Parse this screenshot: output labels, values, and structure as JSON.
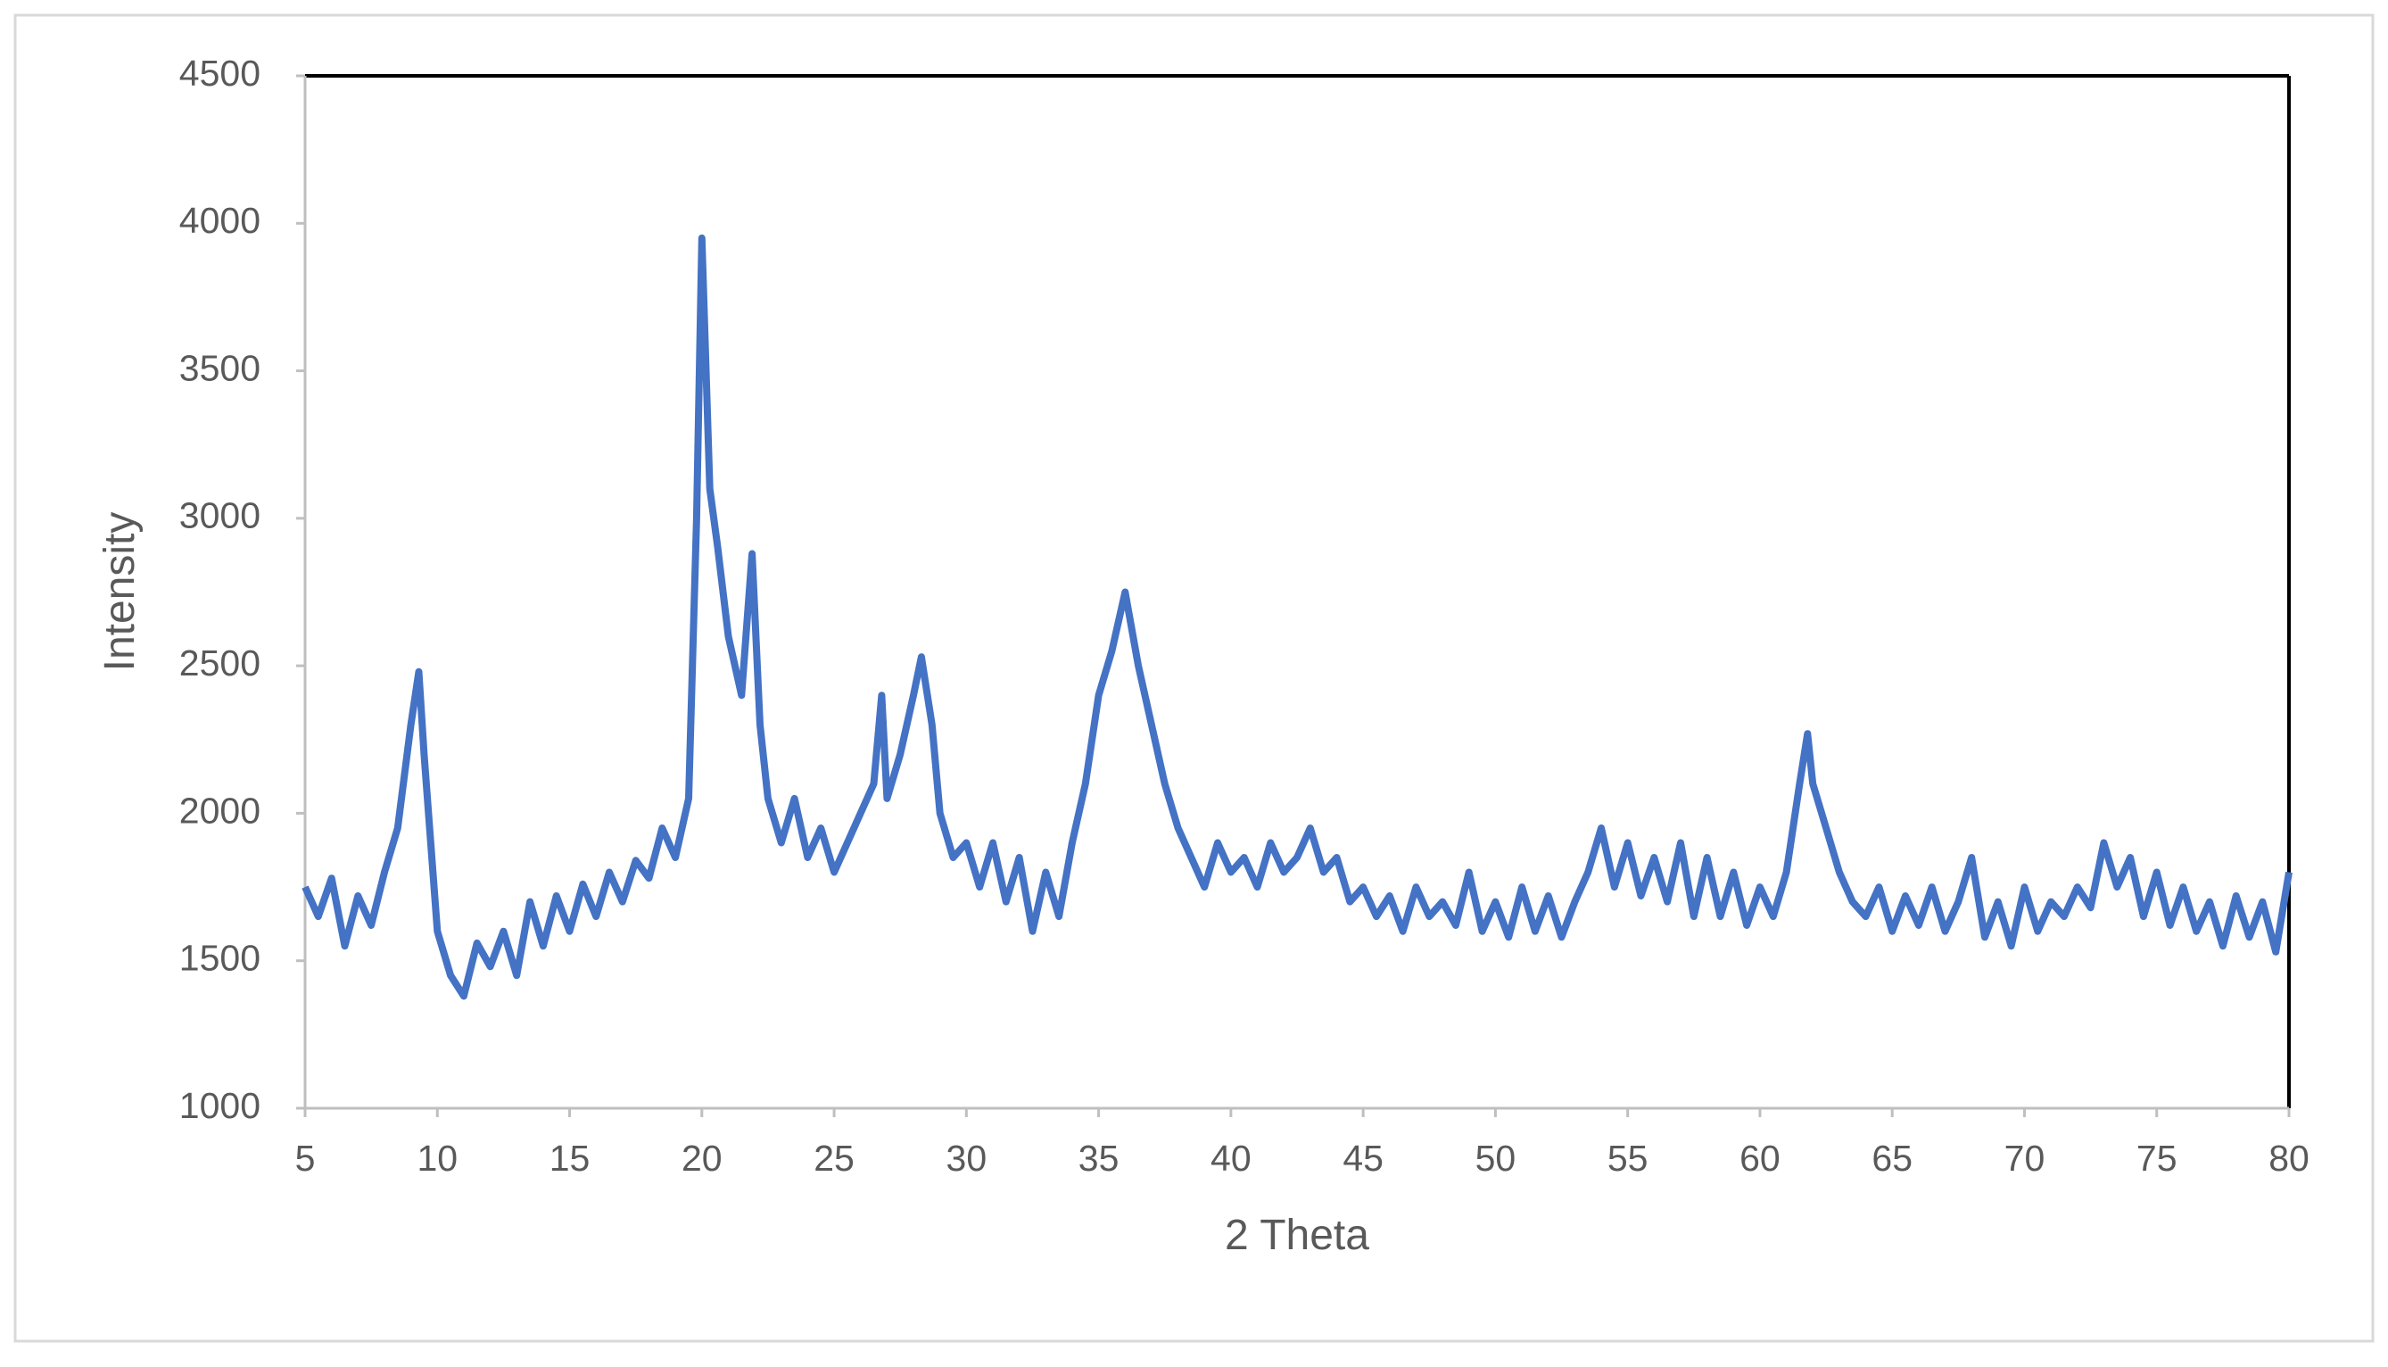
{
  "chart_data": {
    "type": "line",
    "x_label": "2 Theta",
    "y_label": "Intensity",
    "xlim": [
      5,
      80
    ],
    "ylim": [
      1000,
      4500
    ],
    "xticks": [
      5,
      10,
      15,
      20,
      25,
      30,
      35,
      40,
      45,
      50,
      55,
      60,
      65,
      70,
      75,
      80
    ],
    "yticks": [
      1000,
      1500,
      2000,
      2500,
      3000,
      3500,
      4000,
      4500
    ],
    "series": [
      {
        "color": "#4472c4",
        "x": [
          5,
          5.5,
          6,
          6.5,
          7,
          7.5,
          8,
          8.5,
          9,
          9.3,
          9.5,
          10,
          10.5,
          11,
          11.5,
          12,
          12.5,
          13,
          13.5,
          14,
          14.5,
          15,
          15.5,
          16,
          16.5,
          17,
          17.5,
          18,
          18.5,
          19,
          19.5,
          19.8,
          20,
          20.3,
          20.6,
          21,
          21.5,
          21.9,
          22.2,
          22.5,
          23,
          23.5,
          24,
          24.5,
          25,
          25.5,
          26,
          26.5,
          26.8,
          27,
          27.5,
          28,
          28.3,
          28.7,
          29,
          29.5,
          30,
          30.5,
          31,
          31.5,
          32,
          32.5,
          33,
          33.5,
          34,
          34.5,
          35,
          35.5,
          36,
          36.5,
          37,
          37.5,
          38,
          38.5,
          39,
          39.5,
          40,
          40.5,
          41,
          41.5,
          42,
          42.5,
          43,
          43.5,
          44,
          44.5,
          45,
          45.5,
          46,
          46.5,
          47,
          47.5,
          48,
          48.5,
          49,
          49.5,
          50,
          50.5,
          51,
          51.5,
          52,
          52.5,
          53,
          53.5,
          54,
          54.5,
          55,
          55.5,
          56,
          56.5,
          57,
          57.5,
          58,
          58.5,
          59,
          59.5,
          60,
          60.5,
          61,
          61.5,
          61.8,
          62,
          62.5,
          63,
          63.5,
          64,
          64.5,
          65,
          65.5,
          66,
          66.5,
          67,
          67.5,
          68,
          68.5,
          69,
          69.5,
          70,
          70.5,
          71,
          71.5,
          72,
          72.5,
          73,
          73.5,
          74,
          74.5,
          75,
          75.5,
          76,
          76.5,
          77,
          77.5,
          78,
          78.5,
          79,
          79.5,
          80
        ],
        "values": [
          1750,
          1650,
          1780,
          1550,
          1720,
          1620,
          1800,
          1950,
          2300,
          2480,
          2200,
          1600,
          1450,
          1380,
          1560,
          1480,
          1600,
          1450,
          1700,
          1550,
          1720,
          1600,
          1760,
          1650,
          1800,
          1700,
          1840,
          1780,
          1950,
          1850,
          2050,
          3000,
          3950,
          3100,
          2900,
          2600,
          2400,
          2880,
          2300,
          2050,
          1900,
          2050,
          1850,
          1950,
          1800,
          1900,
          2000,
          2100,
          2400,
          2050,
          2200,
          2400,
          2530,
          2300,
          2000,
          1850,
          1900,
          1750,
          1900,
          1700,
          1850,
          1600,
          1800,
          1650,
          1900,
          2100,
          2400,
          2550,
          2750,
          2500,
          2300,
          2100,
          1950,
          1850,
          1750,
          1900,
          1800,
          1850,
          1750,
          1900,
          1800,
          1850,
          1950,
          1800,
          1850,
          1700,
          1750,
          1650,
          1720,
          1600,
          1750,
          1650,
          1700,
          1620,
          1800,
          1600,
          1700,
          1580,
          1750,
          1600,
          1720,
          1580,
          1700,
          1800,
          1950,
          1750,
          1900,
          1720,
          1850,
          1700,
          1900,
          1650,
          1850,
          1650,
          1800,
          1620,
          1750,
          1650,
          1800,
          2100,
          2270,
          2100,
          1950,
          1800,
          1700,
          1650,
          1750,
          1600,
          1720,
          1620,
          1750,
          1600,
          1700,
          1850,
          1580,
          1700,
          1550,
          1750,
          1600,
          1700,
          1650,
          1750,
          1680,
          1900,
          1750,
          1850,
          1650,
          1800,
          1620,
          1750,
          1600,
          1700,
          1550,
          1720,
          1580,
          1700,
          1530,
          1800
        ]
      }
    ]
  }
}
